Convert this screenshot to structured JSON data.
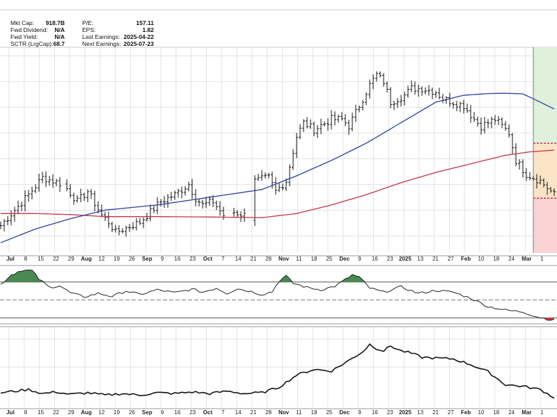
{
  "stats": {
    "left": [
      {
        "label": "Mkt Cap:",
        "value": "918.7B"
      },
      {
        "label": "Fwd Dividend:",
        "value": "N/A"
      },
      {
        "label": "Fwd Yield:",
        "value": "N/A"
      },
      {
        "label": "SCTR (LrgCap):",
        "value": "68.7"
      }
    ],
    "right": [
      {
        "label": "P/E:",
        "value": "157.11"
      },
      {
        "label": "EPS:",
        "value": "1.82"
      },
      {
        "label": "Last Earnings:",
        "value": "2025-04-22"
      },
      {
        "label": "Next Earnings:",
        "value": "2025-07-23"
      }
    ]
  },
  "colors": {
    "price_bars": "#111111",
    "ma_blue": "#2a3d9e",
    "ma_red": "#c8304a",
    "zone_green": "#dff0db",
    "zone_orange": "#fbe4c6",
    "zone_red": "#f9d3d3",
    "zone_dashed": "#d0304a",
    "osc_fill_green": "#4a8a52",
    "osc_fill_red": "#d83a3a",
    "grid": "#e2e2e2"
  },
  "chart_data": [
    {
      "type": "ohlc",
      "x_ticks": [
        {
          "label": "Jul",
          "major": true
        },
        {
          "label": "8"
        },
        {
          "label": "15"
        },
        {
          "label": "22"
        },
        {
          "label": "29"
        },
        {
          "label": "Aug",
          "major": true
        },
        {
          "label": "12"
        },
        {
          "label": "19"
        },
        {
          "label": "26"
        },
        {
          "label": "Sep",
          "major": true
        },
        {
          "label": "9"
        },
        {
          "label": "16"
        },
        {
          "label": "23"
        },
        {
          "label": "Oct",
          "major": true
        },
        {
          "label": "7"
        },
        {
          "label": "14"
        },
        {
          "label": "21"
        },
        {
          "label": "28"
        },
        {
          "label": "Nov",
          "major": true
        },
        {
          "label": "11"
        },
        {
          "label": "18"
        },
        {
          "label": "25"
        },
        {
          "label": "Dec",
          "major": true
        },
        {
          "label": "9"
        },
        {
          "label": "16"
        },
        {
          "label": "23"
        },
        {
          "label": "2025",
          "major": true
        },
        {
          "label": "13"
        },
        {
          "label": "21"
        },
        {
          "label": "27"
        },
        {
          "label": "Feb",
          "major": true
        },
        {
          "label": "10"
        },
        {
          "label": "18"
        },
        {
          "label": "24"
        },
        {
          "label": "Mar",
          "major": true
        },
        {
          "label": "1"
        }
      ],
      "price_keypoints": [
        [
          0,
          48
        ],
        [
          8,
          57
        ],
        [
          12,
          62
        ],
        [
          18,
          60
        ],
        [
          22,
          55
        ],
        [
          25,
          58
        ],
        [
          29,
          51
        ],
        [
          31,
          49
        ],
        [
          33,
          46
        ],
        [
          40,
          49
        ],
        [
          46,
          55
        ],
        [
          50,
          57
        ],
        [
          54,
          60
        ],
        [
          56,
          56
        ],
        [
          58,
          54
        ],
        [
          61,
          55
        ],
        [
          64,
          51
        ],
        [
          67,
          52
        ],
        [
          70,
          51
        ],
        [
          72,
          50
        ],
        [
          73,
          61
        ],
        [
          77,
          62
        ],
        [
          79,
          58
        ],
        [
          82,
          61
        ],
        [
          85,
          74
        ],
        [
          87,
          78
        ],
        [
          90,
          76
        ],
        [
          95,
          79
        ],
        [
          98,
          79
        ],
        [
          100,
          77
        ],
        [
          103,
          83
        ],
        [
          106,
          89
        ],
        [
          108,
          92
        ],
        [
          110,
          90
        ],
        [
          112,
          84
        ],
        [
          114,
          85
        ],
        [
          116,
          86
        ],
        [
          118,
          88
        ],
        [
          121,
          88
        ],
        [
          125,
          87
        ],
        [
          127,
          85
        ],
        [
          130,
          84
        ],
        [
          133,
          83
        ],
        [
          136,
          79
        ],
        [
          138,
          77
        ],
        [
          142,
          79
        ],
        [
          146,
          75
        ],
        [
          148,
          67
        ],
        [
          151,
          63
        ],
        [
          155,
          61
        ],
        [
          159,
          57
        ]
      ],
      "price_gaps": [
        [
          64,
          67
        ],
        [
          70,
          73
        ],
        [
          17,
          19
        ],
        [
          42,
          43
        ]
      ],
      "ma_blue_keypoints": [
        [
          0,
          43
        ],
        [
          10,
          47
        ],
        [
          20,
          50
        ],
        [
          30,
          52.5
        ],
        [
          45,
          54
        ],
        [
          55,
          55.5
        ],
        [
          65,
          57
        ],
        [
          75,
          58.5
        ],
        [
          85,
          62.5
        ],
        [
          95,
          67
        ],
        [
          105,
          72
        ],
        [
          115,
          78
        ],
        [
          125,
          84
        ],
        [
          133,
          86
        ],
        [
          140,
          86.5
        ],
        [
          145,
          86.6
        ],
        [
          150,
          86.4
        ],
        [
          155,
          84
        ],
        [
          159,
          82
        ]
      ],
      "ma_red_keypoints": [
        [
          0,
          51.5
        ],
        [
          10,
          51.5
        ],
        [
          20,
          51.2
        ],
        [
          30,
          50.6
        ],
        [
          45,
          50.6
        ],
        [
          60,
          50.5
        ],
        [
          75,
          50.3
        ],
        [
          85,
          51.5
        ],
        [
          95,
          54
        ],
        [
          105,
          57
        ],
        [
          115,
          60.5
        ],
        [
          125,
          63.5
        ],
        [
          135,
          66
        ],
        [
          145,
          68.5
        ],
        [
          152,
          69.5
        ],
        [
          159,
          70
        ]
      ],
      "zones": [
        {
          "color": "zone_green",
          "from_index": 153,
          "to_index": 159,
          "y_top": 100,
          "y_bottom": 70
        },
        {
          "color": "zone_orange",
          "from_index": 153,
          "to_index": 159,
          "y_top": 72,
          "y_bottom": 56
        },
        {
          "color": "zone_red",
          "from_index": 153,
          "to_index": 159,
          "y_top": 56,
          "y_bottom": 40
        }
      ],
      "dashed_levels": [
        72,
        56
      ],
      "ylim": [
        40,
        100
      ]
    },
    {
      "type": "area",
      "keypoints": [
        [
          0,
          46
        ],
        [
          3,
          62
        ],
        [
          6,
          70
        ],
        [
          9,
          69
        ],
        [
          11,
          55
        ],
        [
          14,
          41
        ],
        [
          17,
          44
        ],
        [
          20,
          32
        ],
        [
          24,
          25
        ],
        [
          28,
          31
        ],
        [
          32,
          26
        ],
        [
          36,
          35
        ],
        [
          40,
          29
        ],
        [
          45,
          37
        ],
        [
          50,
          32
        ],
        [
          55,
          38
        ],
        [
          58,
          33
        ],
        [
          62,
          40
        ],
        [
          65,
          31
        ],
        [
          68,
          39
        ],
        [
          72,
          34
        ],
        [
          75,
          29
        ],
        [
          78,
          34
        ],
        [
          80,
          52
        ],
        [
          82,
          60
        ],
        [
          84,
          48
        ],
        [
          88,
          41
        ],
        [
          92,
          37
        ],
        [
          96,
          43
        ],
        [
          99,
          54
        ],
        [
          101,
          62
        ],
        [
          103,
          58
        ],
        [
          106,
          40
        ],
        [
          110,
          33
        ],
        [
          115,
          42
        ],
        [
          120,
          31
        ],
        [
          125,
          36
        ],
        [
          130,
          33
        ],
        [
          135,
          23
        ],
        [
          140,
          9
        ],
        [
          145,
          3
        ],
        [
          150,
          0
        ],
        [
          154,
          -8
        ],
        [
          157,
          -12
        ],
        [
          159,
          -14
        ]
      ],
      "upper_line": 50,
      "mid_line": 20,
      "lower_line": -10,
      "ylim": [
        -20,
        80
      ]
    },
    {
      "type": "line",
      "keypoints": [
        [
          0,
          18
        ],
        [
          4,
          20
        ],
        [
          8,
          22
        ],
        [
          12,
          17
        ],
        [
          16,
          19
        ],
        [
          20,
          16
        ],
        [
          25,
          18
        ],
        [
          30,
          15
        ],
        [
          35,
          17
        ],
        [
          40,
          15
        ],
        [
          45,
          18
        ],
        [
          50,
          17
        ],
        [
          55,
          19
        ],
        [
          60,
          17
        ],
        [
          65,
          20
        ],
        [
          70,
          17
        ],
        [
          75,
          18
        ],
        [
          80,
          25
        ],
        [
          85,
          40
        ],
        [
          90,
          47
        ],
        [
          95,
          45
        ],
        [
          100,
          58
        ],
        [
          104,
          69
        ],
        [
          106,
          78
        ],
        [
          108,
          73
        ],
        [
          110,
          70
        ],
        [
          112,
          76
        ],
        [
          115,
          70
        ],
        [
          118,
          67
        ],
        [
          121,
          62
        ],
        [
          125,
          61
        ],
        [
          130,
          60
        ],
        [
          135,
          53
        ],
        [
          140,
          44
        ],
        [
          145,
          28
        ],
        [
          150,
          26
        ],
        [
          155,
          22
        ],
        [
          159,
          12
        ]
      ],
      "ylim": [
        0,
        100
      ]
    }
  ]
}
